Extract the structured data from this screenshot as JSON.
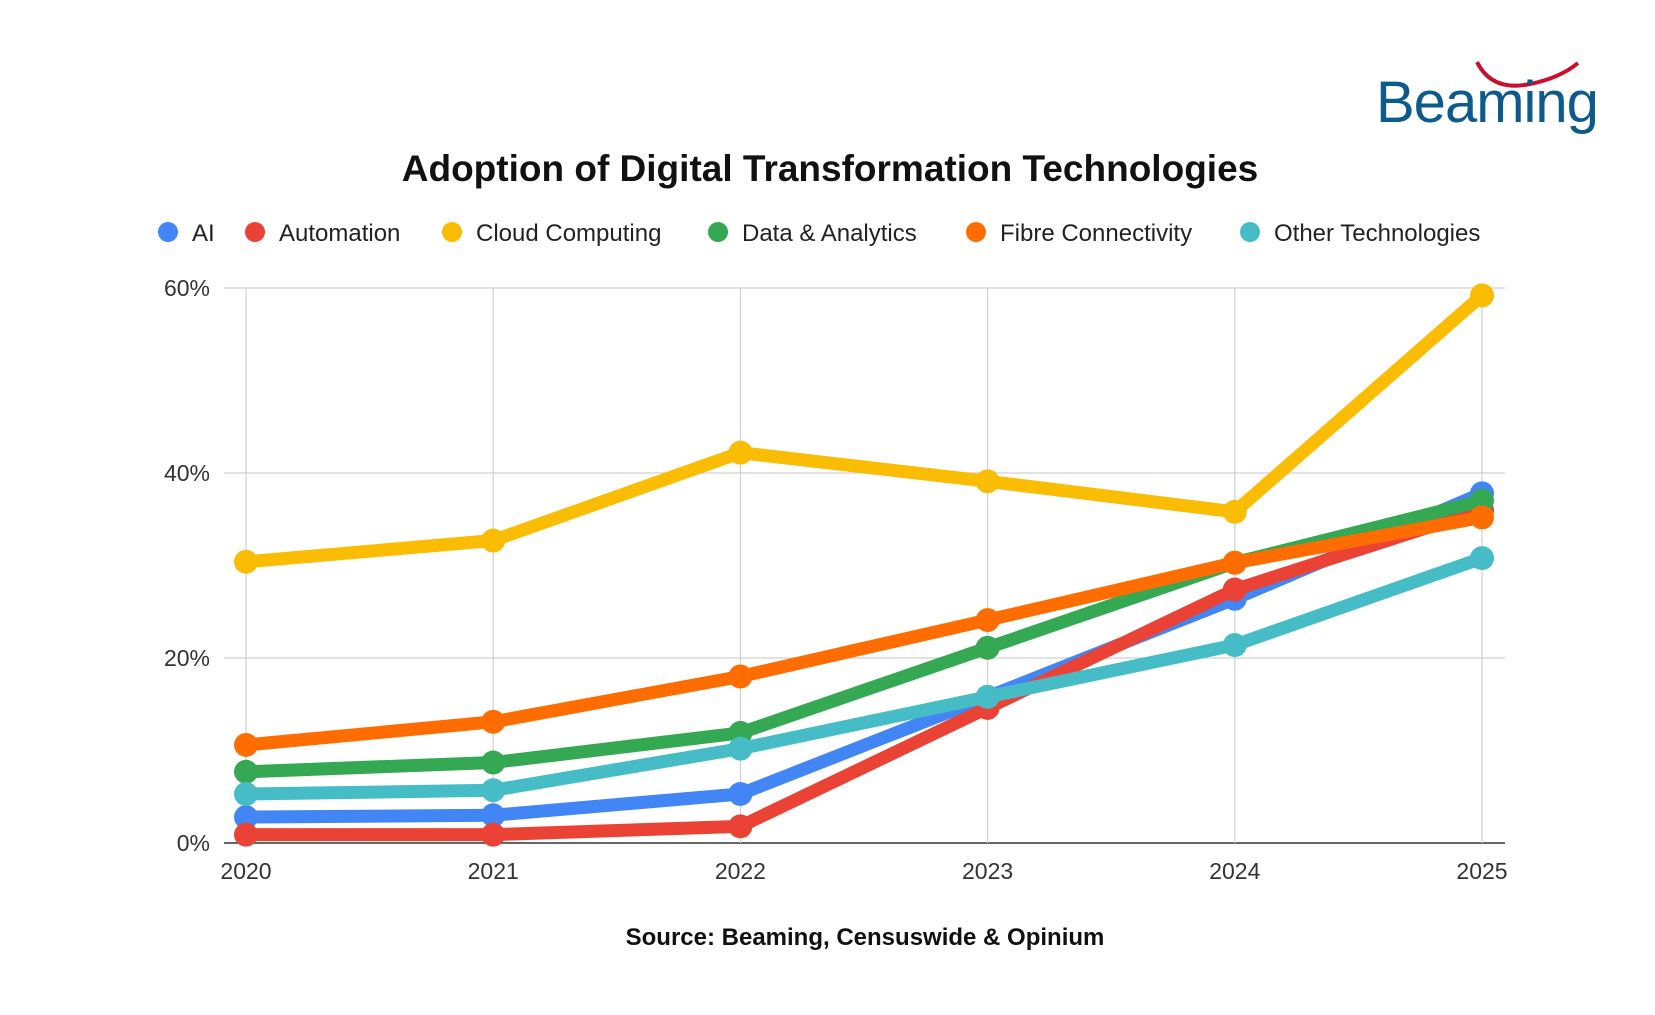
{
  "logo": {
    "text": "Beaming",
    "text_color": "#0d5a8c",
    "arc_color": "#c8102e"
  },
  "chart_data": {
    "type": "line",
    "title": "Adoption of Digital Transformation Technologies",
    "source": "Source: Beaming, Censuswide & Opinium",
    "xlabel": "",
    "ylabel": "",
    "categories": [
      "2020",
      "2021",
      "2022",
      "2023",
      "2024",
      "2025"
    ],
    "ylim": [
      0,
      60
    ],
    "yticks": [
      0,
      20,
      40,
      60
    ],
    "ytick_labels": [
      "0%",
      "20%",
      "40%",
      "60%"
    ],
    "grid": true,
    "legend_position": "top",
    "series": [
      {
        "name": "AI",
        "color": "#4285f4",
        "values": [
          2.8,
          3.0,
          5.3,
          15.8,
          26.4,
          37.8
        ]
      },
      {
        "name": "Automation",
        "color": "#ea4335",
        "values": [
          0.9,
          0.9,
          1.8,
          14.6,
          27.4,
          36.0
        ]
      },
      {
        "name": "Cloud Computing",
        "color": "#fbbc04",
        "values": [
          30.4,
          32.7,
          42.2,
          39.1,
          35.8,
          59.2
        ]
      },
      {
        "name": "Data & Analytics",
        "color": "#34a853",
        "values": [
          7.7,
          8.7,
          11.9,
          21.1,
          30.3,
          37.0
        ]
      },
      {
        "name": "Fibre Connectivity",
        "color": "#ff6d01",
        "values": [
          10.6,
          13.1,
          18.0,
          24.1,
          30.3,
          35.2
        ]
      },
      {
        "name": "Other Technologies",
        "color": "#46bdc6",
        "values": [
          5.3,
          5.7,
          10.2,
          15.8,
          21.4,
          30.8
        ]
      }
    ]
  }
}
